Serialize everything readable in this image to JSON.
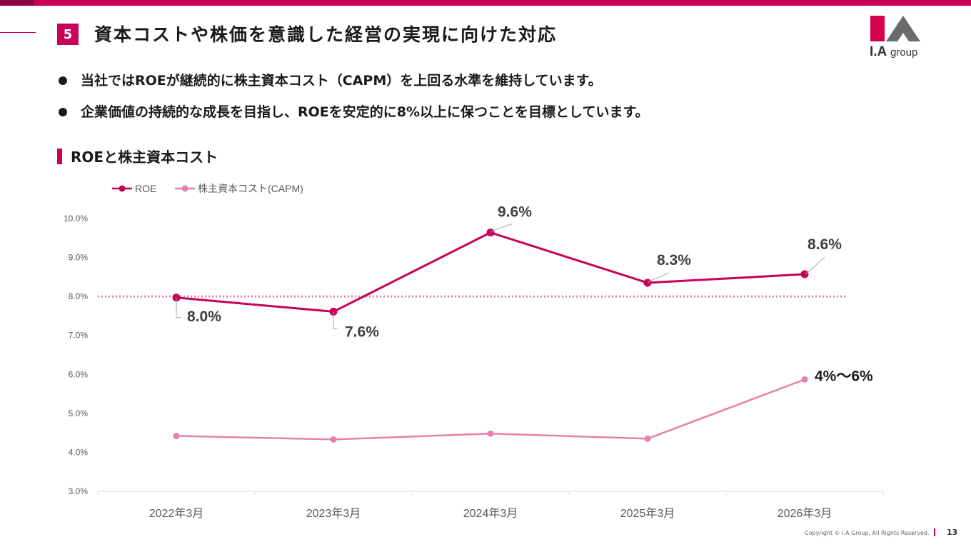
{
  "header": {
    "section_number": "5",
    "title": "資本コストや株価を意識した経営の実現に向けた対応"
  },
  "logo": {
    "text": "I.A",
    "group_text": "group",
    "colors": {
      "red": "#d6004f",
      "gray": "#6b6b6b"
    }
  },
  "bullets": [
    "当社ではROEが継続的に株主資本コスト（CAPM）を上回る水準を維持しています。",
    "企業価値の持続的な成長を目指し、ROEを安定的に8%以上に保つことを目標としています。"
  ],
  "section_heading": "ROEと株主資本コスト",
  "chart_data": {
    "type": "line",
    "categories": [
      "2022年3月",
      "2023年3月",
      "2024年3月",
      "2025年3月",
      "2026年3月"
    ],
    "series": [
      {
        "name": "ROE",
        "color": "#c8005a",
        "values": [
          7.97,
          7.61,
          9.64,
          8.35,
          8.57
        ],
        "labels": [
          "8.0%",
          "7.6%",
          "9.6%",
          "8.3%",
          "8.6%"
        ]
      },
      {
        "name": "株主資本コスト(CAPM)",
        "color": "#e87fac",
        "values": [
          4.42,
          4.33,
          4.48,
          4.35,
          5.87
        ],
        "end_label": "4%〜6%"
      }
    ],
    "target_line": 8.0,
    "ylim": [
      3.0,
      10.0
    ],
    "yticks": [
      "3.0%",
      "4.0%",
      "5.0%",
      "6.0%",
      "7.0%",
      "8.0%",
      "9.0%",
      "10.0%"
    ],
    "legend_position": "top-left",
    "grid": false
  },
  "footer": {
    "copyright": "Copyright © I.A Group, All Rights Reserved.",
    "page": "13"
  }
}
